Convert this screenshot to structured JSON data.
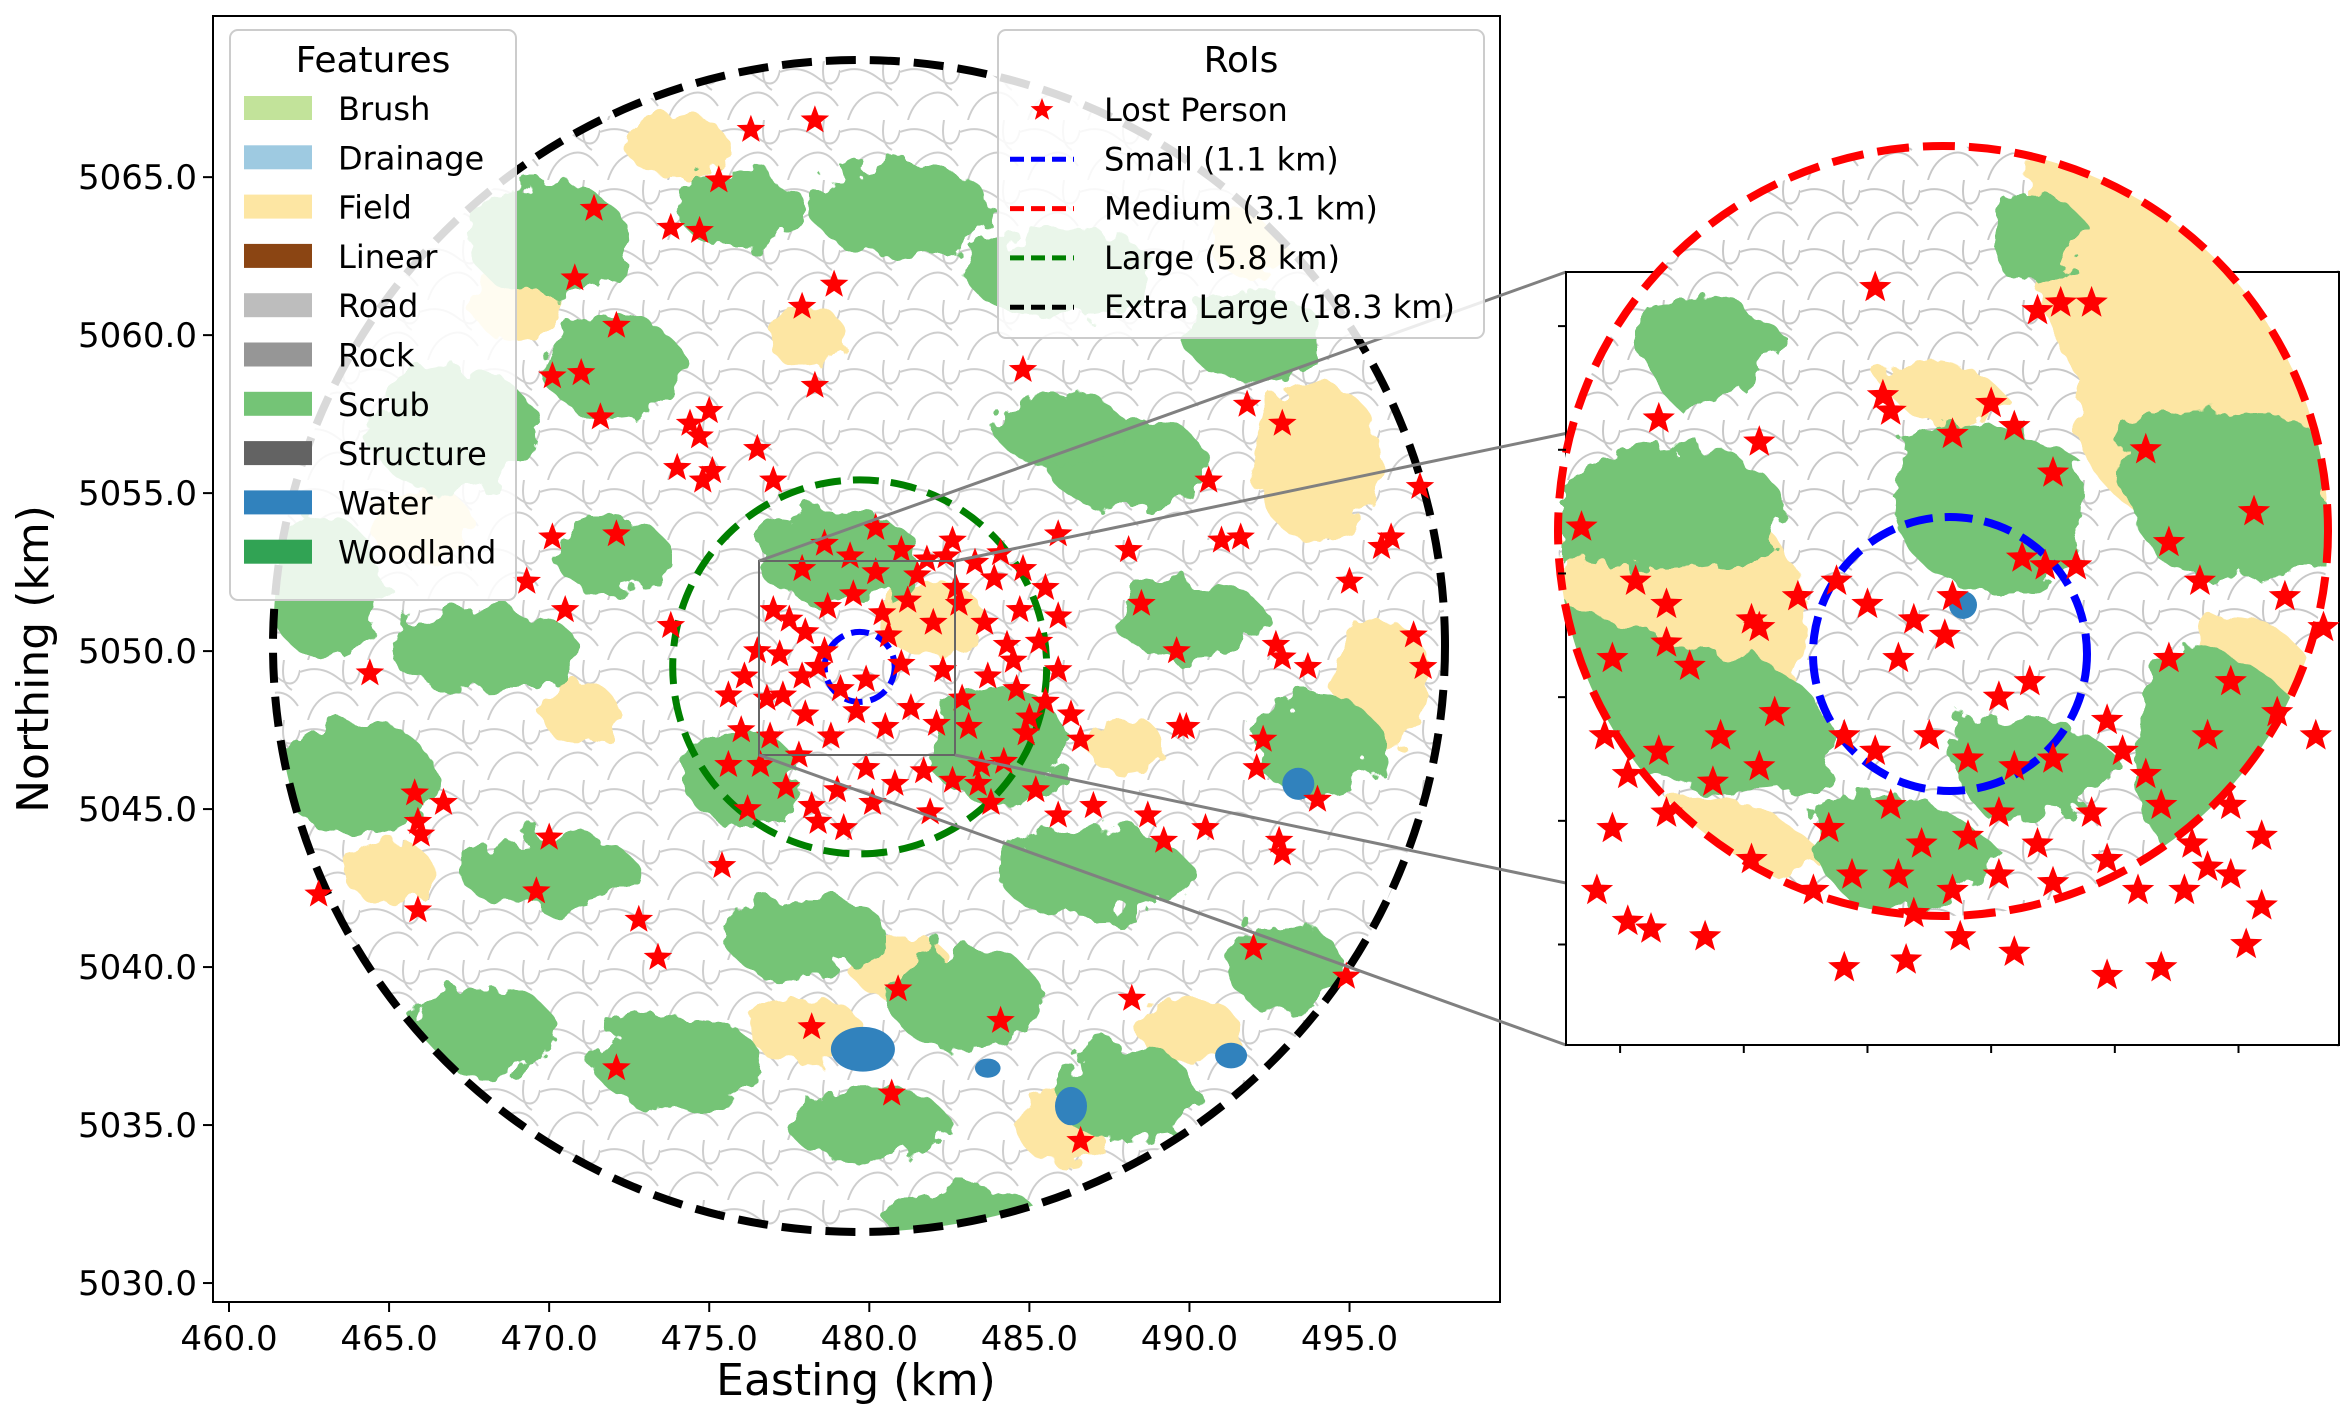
{
  "axes": {
    "xlabel": "Easting (km)",
    "ylabel": "Northing (km)",
    "xlim": [
      459.5,
      499.7
    ],
    "ylim": [
      5029.4,
      5070.1
    ],
    "xticks": [
      460,
      465,
      470,
      475,
      480,
      485,
      490,
      495
    ],
    "xtick_labels": [
      "460.0",
      "465.0",
      "470.0",
      "475.0",
      "480.0",
      "485.0",
      "490.0",
      "495.0"
    ],
    "yticks": [
      5030,
      5035,
      5040,
      5045,
      5050,
      5055,
      5060,
      5065
    ],
    "ytick_labels": [
      "5030.0",
      "5035.0",
      "5040.0",
      "5045.0",
      "5050.0",
      "5055.0",
      "5060.0",
      "5065.0"
    ]
  },
  "features_legend": {
    "title": "Features",
    "items": [
      {
        "label": "Brush",
        "color": "#c2e39a"
      },
      {
        "label": "Drainage",
        "color": "#9ecae1"
      },
      {
        "label": "Field",
        "color": "#fde6a3"
      },
      {
        "label": "Linear",
        "color": "#8b4513"
      },
      {
        "label": "Road",
        "color": "#bdbdbd"
      },
      {
        "label": "Rock",
        "color": "#969696"
      },
      {
        "label": "Scrub",
        "color": "#74c476"
      },
      {
        "label": "Structure",
        "color": "#636363"
      },
      {
        "label": "Water",
        "color": "#3182bd"
      },
      {
        "label": "Woodland",
        "color": "#31a354"
      }
    ]
  },
  "rois_legend": {
    "title": "RoIs",
    "items": [
      {
        "label": "Lost Person",
        "kind": "star",
        "color": "#ff0000"
      },
      {
        "label": "Small (1.1 km)",
        "kind": "dash",
        "color": "#0000ff"
      },
      {
        "label": "Medium (3.1 km)",
        "kind": "dash",
        "color": "#ff0000"
      },
      {
        "label": "Large (5.8 km)",
        "kind": "dash",
        "color": "#008000"
      },
      {
        "label": "Extra Large (18.3 km)",
        "kind": "dash",
        "color": "#000000"
      }
    ]
  },
  "rois": {
    "center": [
      479.7,
      5049.5
    ],
    "small_radius_km": 1.1,
    "medium_radius_km": 3.1,
    "large_radius_km": 5.8,
    "extra_large_radius_km": 18.3
  },
  "map_data": {
    "lost_persons_outer": [
      [
        478.3,
        5066.8
      ],
      [
        476.3,
        5066.5
      ],
      [
        475.3,
        5064.9
      ],
      [
        471.4,
        5064.0
      ],
      [
        473.8,
        5063.4
      ],
      [
        474.7,
        5063.3
      ],
      [
        470.8,
        5061.8
      ],
      [
        478.9,
        5061.6
      ],
      [
        477.9,
        5060.9
      ],
      [
        472.1,
        5060.3
      ],
      [
        470.1,
        5058.7
      ],
      [
        471.0,
        5058.8
      ],
      [
        478.3,
        5058.4
      ],
      [
        484.8,
        5058.9
      ],
      [
        491.8,
        5057.8
      ],
      [
        492.9,
        5057.2
      ],
      [
        471.6,
        5057.4
      ],
      [
        474.4,
        5057.2
      ],
      [
        475.0,
        5057.6
      ],
      [
        474.7,
        5056.8
      ],
      [
        474.0,
        5055.8
      ],
      [
        474.8,
        5055.4
      ],
      [
        475.1,
        5055.7
      ],
      [
        476.5,
        5056.4
      ],
      [
        477.0,
        5055.4
      ],
      [
        490.6,
        5055.4
      ],
      [
        497.2,
        5055.2
      ],
      [
        496.3,
        5053.6
      ],
      [
        496.0,
        5053.3
      ],
      [
        491.0,
        5053.5
      ],
      [
        491.6,
        5053.6
      ],
      [
        488.1,
        5053.2
      ],
      [
        485.9,
        5053.7
      ],
      [
        472.1,
        5053.7
      ],
      [
        470.1,
        5053.6
      ],
      [
        469.3,
        5052.2
      ],
      [
        488.5,
        5051.5
      ],
      [
        495.0,
        5052.2
      ],
      [
        497.0,
        5050.5
      ],
      [
        470.5,
        5051.3
      ],
      [
        464.4,
        5049.3
      ],
      [
        473.8,
        5050.8
      ],
      [
        489.6,
        5050.0
      ],
      [
        492.7,
        5050.2
      ],
      [
        492.9,
        5049.8
      ],
      [
        493.7,
        5049.5
      ],
      [
        497.3,
        5049.5
      ],
      [
        489.9,
        5047.6
      ],
      [
        489.7,
        5047.6
      ],
      [
        492.3,
        5047.2
      ],
      [
        492.1,
        5046.3
      ],
      [
        494.0,
        5045.3
      ],
      [
        465.8,
        5045.5
      ],
      [
        466.7,
        5045.2
      ],
      [
        465.9,
        5044.6
      ],
      [
        466.0,
        5044.2
      ],
      [
        470.0,
        5044.1
      ],
      [
        475.4,
        5043.2
      ],
      [
        487.0,
        5045.1
      ],
      [
        488.7,
        5044.8
      ],
      [
        489.2,
        5044.0
      ],
      [
        490.5,
        5044.4
      ],
      [
        492.8,
        5044.0
      ],
      [
        492.9,
        5043.6
      ],
      [
        469.6,
        5042.4
      ],
      [
        462.8,
        5042.3
      ],
      [
        465.9,
        5041.8
      ],
      [
        472.8,
        5041.5
      ],
      [
        473.4,
        5040.3
      ],
      [
        492.0,
        5040.6
      ],
      [
        494.9,
        5039.7
      ],
      [
        488.2,
        5039.0
      ],
      [
        480.9,
        5039.3
      ],
      [
        478.2,
        5038.1
      ],
      [
        484.1,
        5038.3
      ],
      [
        472.1,
        5036.8
      ],
      [
        480.7,
        5036.0
      ],
      [
        486.6,
        5034.5
      ]
    ],
    "lost_persons_inner": [
      [
        476.5,
        5050.0
      ],
      [
        477.0,
        5051.3
      ],
      [
        477.9,
        5052.6
      ],
      [
        478.6,
        5053.4
      ],
      [
        479.4,
        5053.0
      ],
      [
        480.2,
        5052.5
      ],
      [
        481.0,
        5053.2
      ],
      [
        481.8,
        5052.9
      ],
      [
        482.6,
        5053.5
      ],
      [
        483.3,
        5052.8
      ],
      [
        484.1,
        5053.1
      ],
      [
        484.8,
        5052.6
      ],
      [
        485.5,
        5052.0
      ],
      [
        485.9,
        5051.1
      ],
      [
        485.3,
        5050.3
      ],
      [
        485.9,
        5049.4
      ],
      [
        485.5,
        5048.4
      ],
      [
        484.9,
        5047.4
      ],
      [
        484.2,
        5046.5
      ],
      [
        483.4,
        5045.8
      ],
      [
        482.6,
        5045.9
      ],
      [
        481.7,
        5046.2
      ],
      [
        480.8,
        5045.8
      ],
      [
        479.9,
        5046.3
      ],
      [
        479.0,
        5045.6
      ],
      [
        478.2,
        5045.1
      ],
      [
        477.4,
        5045.7
      ],
      [
        476.6,
        5046.4
      ],
      [
        476.0,
        5047.5
      ],
      [
        475.6,
        5048.6
      ],
      [
        476.1,
        5049.2
      ],
      [
        477.2,
        5049.9
      ],
      [
        478.0,
        5050.6
      ],
      [
        478.7,
        5051.4
      ],
      [
        479.5,
        5051.8
      ],
      [
        480.4,
        5051.2
      ],
      [
        481.2,
        5051.6
      ],
      [
        482.0,
        5050.9
      ],
      [
        482.8,
        5051.5
      ],
      [
        483.6,
        5050.9
      ],
      [
        484.3,
        5050.2
      ],
      [
        483.7,
        5049.2
      ],
      [
        482.9,
        5048.5
      ],
      [
        482.1,
        5047.7
      ],
      [
        481.3,
        5048.2
      ],
      [
        480.5,
        5047.6
      ],
      [
        479.6,
        5048.1
      ],
      [
        478.8,
        5047.3
      ],
      [
        478.0,
        5048.0
      ],
      [
        477.3,
        5048.6
      ],
      [
        477.9,
        5049.2
      ],
      [
        478.6,
        5050.0
      ],
      [
        479.1,
        5048.8
      ],
      [
        481.0,
        5049.6
      ],
      [
        482.3,
        5049.4
      ],
      [
        483.1,
        5047.6
      ],
      [
        484.6,
        5048.8
      ],
      [
        480.2,
        5053.9
      ],
      [
        477.8,
        5046.7
      ],
      [
        476.9,
        5047.3
      ],
      [
        481.9,
        5044.9
      ],
      [
        479.2,
        5044.4
      ],
      [
        478.4,
        5044.6
      ],
      [
        483.8,
        5045.2
      ],
      [
        485.2,
        5045.6
      ],
      [
        485.9,
        5044.8
      ],
      [
        482.4,
        5053.0
      ],
      [
        483.9,
        5052.3
      ],
      [
        484.7,
        5051.3
      ],
      [
        481.5,
        5052.4
      ],
      [
        480.6,
        5050.5
      ],
      [
        479.9,
        5049.1
      ],
      [
        478.4,
        5049.5
      ],
      [
        476.8,
        5048.5
      ],
      [
        477.5,
        5051.0
      ],
      [
        485.0,
        5047.9
      ],
      [
        483.5,
        5046.4
      ],
      [
        480.1,
        5045.2
      ],
      [
        482.7,
        5052.0
      ],
      [
        484.5,
        5049.7
      ],
      [
        475.6,
        5046.4
      ],
      [
        476.2,
        5045.0
      ],
      [
        486.3,
        5048.0
      ],
      [
        486.6,
        5047.2
      ]
    ],
    "lost_persons_inset": [
      [
        0.4,
        0.98
      ],
      [
        0.61,
        0.95
      ],
      [
        0.64,
        0.96
      ],
      [
        0.68,
        0.96
      ],
      [
        0.12,
        0.81
      ],
      [
        0.25,
        0.78
      ],
      [
        0.41,
        0.84
      ],
      [
        0.42,
        0.82
      ],
      [
        0.5,
        0.79
      ],
      [
        0.55,
        0.83
      ],
      [
        0.58,
        0.8
      ],
      [
        0.63,
        0.74
      ],
      [
        0.75,
        0.77
      ],
      [
        0.02,
        0.67
      ],
      [
        0.09,
        0.6
      ],
      [
        0.13,
        0.57
      ],
      [
        0.24,
        0.55
      ],
      [
        0.3,
        0.58
      ],
      [
        0.35,
        0.6
      ],
      [
        0.45,
        0.55
      ],
      [
        0.5,
        0.58
      ],
      [
        0.59,
        0.63
      ],
      [
        0.62,
        0.62
      ],
      [
        0.66,
        0.62
      ],
      [
        0.78,
        0.65
      ],
      [
        0.82,
        0.6
      ],
      [
        0.89,
        0.69
      ],
      [
        0.93,
        0.58
      ],
      [
        0.06,
        0.5
      ],
      [
        0.13,
        0.52
      ],
      [
        0.16,
        0.49
      ],
      [
        0.25,
        0.54
      ],
      [
        0.39,
        0.57
      ],
      [
        0.43,
        0.5
      ],
      [
        0.49,
        0.53
      ],
      [
        0.56,
        0.45
      ],
      [
        0.6,
        0.47
      ],
      [
        0.7,
        0.42
      ],
      [
        0.78,
        0.5
      ],
      [
        0.86,
        0.47
      ],
      [
        0.98,
        0.54
      ],
      [
        0.05,
        0.4
      ],
      [
        0.08,
        0.35
      ],
      [
        0.12,
        0.38
      ],
      [
        0.2,
        0.4
      ],
      [
        0.27,
        0.43
      ],
      [
        0.36,
        0.4
      ],
      [
        0.4,
        0.38
      ],
      [
        0.47,
        0.4
      ],
      [
        0.52,
        0.37
      ],
      [
        0.58,
        0.36
      ],
      [
        0.63,
        0.37
      ],
      [
        0.72,
        0.38
      ],
      [
        0.75,
        0.35
      ],
      [
        0.83,
        0.4
      ],
      [
        0.92,
        0.43
      ],
      [
        0.97,
        0.4
      ],
      [
        0.06,
        0.28
      ],
      [
        0.13,
        0.3
      ],
      [
        0.19,
        0.34
      ],
      [
        0.25,
        0.36
      ],
      [
        0.34,
        0.28
      ],
      [
        0.42,
        0.31
      ],
      [
        0.46,
        0.26
      ],
      [
        0.52,
        0.27
      ],
      [
        0.56,
        0.3
      ],
      [
        0.61,
        0.26
      ],
      [
        0.68,
        0.3
      ],
      [
        0.77,
        0.31
      ],
      [
        0.81,
        0.26
      ],
      [
        0.86,
        0.31
      ],
      [
        0.9,
        0.27
      ],
      [
        0.04,
        0.2
      ],
      [
        0.08,
        0.16
      ],
      [
        0.11,
        0.15
      ],
      [
        0.18,
        0.14
      ],
      [
        0.24,
        0.24
      ],
      [
        0.32,
        0.2
      ],
      [
        0.37,
        0.22
      ],
      [
        0.43,
        0.22
      ],
      [
        0.45,
        0.17
      ],
      [
        0.5,
        0.2
      ],
      [
        0.56,
        0.22
      ],
      [
        0.63,
        0.21
      ],
      [
        0.7,
        0.24
      ],
      [
        0.74,
        0.2
      ],
      [
        0.8,
        0.2
      ],
      [
        0.83,
        0.23
      ],
      [
        0.86,
        0.22
      ],
      [
        0.9,
        0.18
      ],
      [
        0.36,
        0.1
      ],
      [
        0.44,
        0.11
      ],
      [
        0.51,
        0.14
      ],
      [
        0.58,
        0.12
      ],
      [
        0.7,
        0.09
      ],
      [
        0.77,
        0.1
      ],
      [
        0.88,
        0.13
      ]
    ],
    "woodland_patches": [
      [
        470,
        5063,
        2.5,
        1.8
      ],
      [
        476,
        5064,
        2.0,
        1.2
      ],
      [
        481,
        5064,
        2.8,
        1.5
      ],
      [
        486,
        5062,
        3.0,
        1.4
      ],
      [
        472,
        5059,
        2.2,
        1.6
      ],
      [
        467,
        5057,
        2.6,
        2.0
      ],
      [
        463,
        5052,
        1.8,
        2.2
      ],
      [
        468,
        5050,
        3.0,
        1.3
      ],
      [
        464,
        5046,
        2.4,
        1.8
      ],
      [
        470,
        5043,
        2.8,
        1.2
      ],
      [
        488,
        5056,
        2.5,
        1.5
      ],
      [
        492,
        5060,
        2.2,
        1.4
      ],
      [
        490,
        5051,
        2.4,
        1.2
      ],
      [
        494,
        5047,
        2.0,
        1.6
      ],
      [
        487,
        5043,
        3.0,
        1.4
      ],
      [
        478,
        5041,
        2.6,
        1.3
      ],
      [
        483,
        5039,
        2.4,
        1.6
      ],
      [
        474,
        5037,
        2.6,
        1.5
      ],
      [
        468,
        5038,
        2.2,
        1.4
      ],
      [
        480,
        5035,
        2.5,
        1.2
      ],
      [
        488,
        5036,
        2.2,
        1.5
      ],
      [
        493,
        5040,
        1.8,
        1.4
      ],
      [
        479,
        5053,
        2.6,
        1.5
      ],
      [
        484,
        5047,
        2.2,
        1.8
      ],
      [
        476,
        5046,
        1.8,
        1.5
      ],
      [
        486,
        5057,
        2.0,
        1.2
      ],
      [
        472,
        5053,
        1.8,
        1.2
      ],
      [
        483,
        5032,
        2.4,
        1.0
      ]
    ],
    "field_patches": [
      [
        474,
        5066,
        1.6,
        1.0
      ],
      [
        469,
        5061,
        1.4,
        1.2
      ],
      [
        494,
        5056,
        2.0,
        2.5
      ],
      [
        496,
        5049,
        1.5,
        2.0
      ],
      [
        466,
        5054,
        1.6,
        1.2
      ],
      [
        465,
        5043,
        1.4,
        1.0
      ],
      [
        481,
        5040,
        1.6,
        1.0
      ],
      [
        478,
        5038,
        1.8,
        1.0
      ],
      [
        486,
        5035,
        1.4,
        1.2
      ],
      [
        482,
        5051,
        1.6,
        1.2
      ],
      [
        488,
        5047,
        1.2,
        0.9
      ],
      [
        471,
        5048,
        1.2,
        1.0
      ],
      [
        492,
        5063,
        1.4,
        1.2
      ],
      [
        478,
        5060,
        1.2,
        1.0
      ],
      [
        490,
        5038,
        1.6,
        1.0
      ]
    ],
    "water_patches": [
      [
        479.8,
        5037.4,
        1.0,
        0.7
      ],
      [
        486.3,
        5035.6,
        0.5,
        0.6
      ],
      [
        493.4,
        5045.8,
        0.5,
        0.5
      ],
      [
        491.3,
        5037.2,
        0.5,
        0.4
      ],
      [
        483.7,
        5036.8,
        0.4,
        0.3
      ]
    ]
  }
}
